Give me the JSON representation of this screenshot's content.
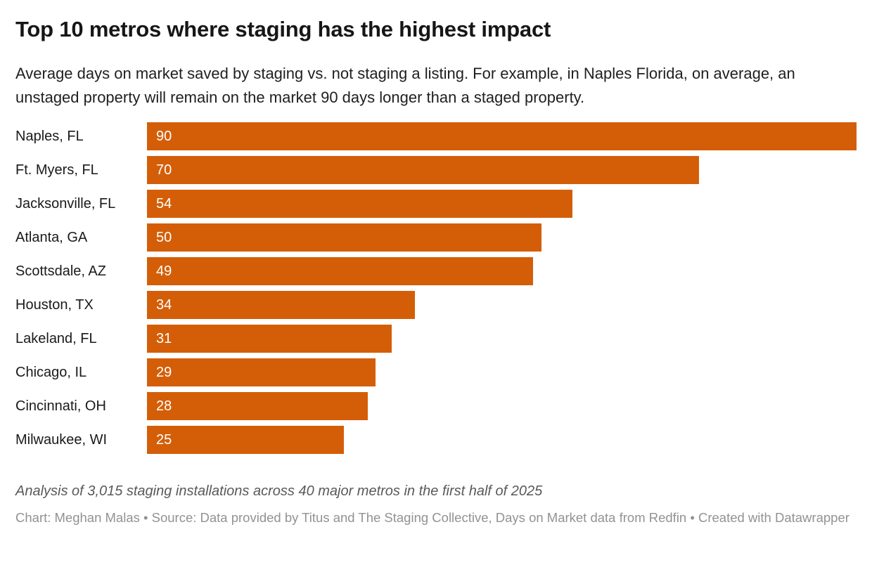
{
  "header": {
    "title": "Top 10 metros where staging has the highest impact",
    "subtitle": "Average days on market saved by staging vs. not staging a listing. For example, in Naples Florida, on average, an unstaged property will remain on the market 90 days longer than a staged property."
  },
  "chart_data": {
    "type": "bar",
    "orientation": "horizontal",
    "categories": [
      "Naples, FL",
      "Ft. Myers, FL",
      "Jacksonville, FL",
      "Atlanta, GA",
      "Scottsdale, AZ",
      "Houston, TX",
      "Lakeland, FL",
      "Chicago, IL",
      "Cincinnati, OH",
      "Milwaukee, WI"
    ],
    "values": [
      90,
      70,
      54,
      50,
      49,
      34,
      31,
      29,
      28,
      25
    ],
    "title": "Top 10 metros where staging has the highest impact",
    "xlabel": "",
    "ylabel": "",
    "xlim": [
      0,
      90
    ],
    "grid": false,
    "legend": false,
    "value_labels": "inside-start",
    "bar_color": "#d45e08",
    "value_label_color": "#ffffff"
  },
  "footer": {
    "note": "Analysis of 3,015 staging installations across 40 major metros in the first half of 2025",
    "credit": "Chart: Meghan Malas • Source: Data provided by Titus and The Staging Collective, Days on Market data from Redfin • Created with Datawrapper"
  }
}
